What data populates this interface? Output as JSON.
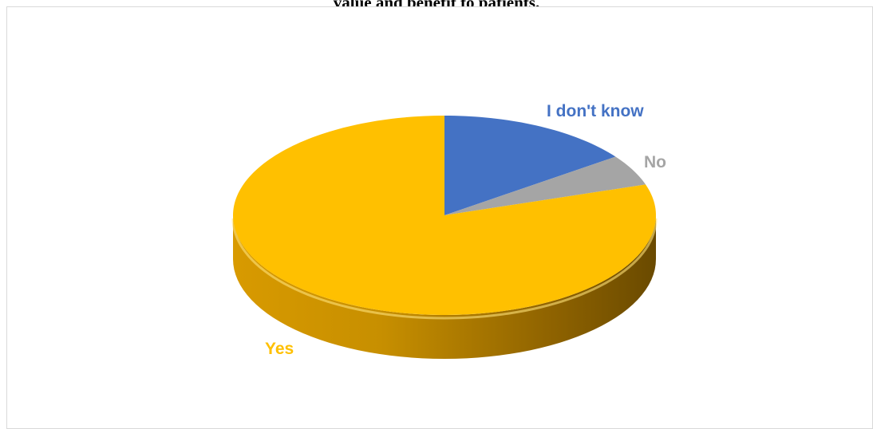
{
  "title": "value and benefit to patients.",
  "chart_data": {
    "type": "pie",
    "title": "value and benefit to patients.",
    "slices": [
      {
        "label": "I don't know",
        "value": 15,
        "color": "#4472c4"
      },
      {
        "label": "No",
        "value": 5,
        "color": "#a5a5a5"
      },
      {
        "label": "Yes",
        "value": 80,
        "color": "#ffc000"
      }
    ],
    "style": "3d",
    "legend": "none",
    "data_labels": "category names outside slices"
  }
}
